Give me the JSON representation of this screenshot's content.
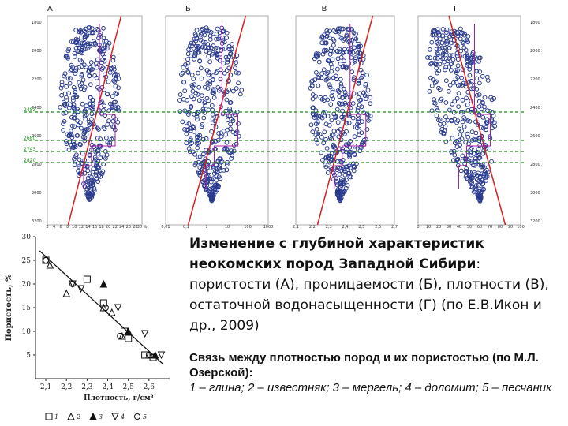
{
  "caption_main": {
    "bold": "Изменение с глубиной характеристик неокомских пород Западной Сибири",
    "rest": ": пористости (А), проницаемости (Б), плотности (В), остаточной водонасыщенности (Г) (по Е.В.Икон и др., 2009)"
  },
  "caption_second": {
    "title": "Связь между плотностью пород и их пористостью (по М.Л. Озерской):",
    "legend_text": "1 – глина; 2 – известняк; 3 – мергель; 4 – доломит; 5 – песчаник"
  },
  "chart_data": [
    {
      "type": "scatter",
      "panel": "А",
      "ylabels_left": [
        "1800",
        "2000",
        "2200",
        "2400",
        "2600",
        "2800",
        "3000",
        "3200"
      ],
      "xlabels": [
        "2",
        "4",
        "6",
        "8",
        "10",
        "12",
        "14",
        "16",
        "18",
        "20",
        "22",
        "24",
        "26",
        "28",
        "30 %"
      ],
      "markers": [
        "2483",
        "2680",
        "2743",
        "2820"
      ],
      "trend": "increasing depth, decreasing value"
    },
    {
      "type": "scatter",
      "panel": "Б",
      "xlabels": [
        "0,01",
        "0,1",
        "1",
        "10",
        "100",
        "1000"
      ]
    },
    {
      "type": "scatter",
      "panel": "В",
      "xlabels": [
        "2,1",
        "2,2",
        "2,3",
        "2,4",
        "2,5",
        "2,6",
        "2,7"
      ]
    },
    {
      "type": "scatter",
      "panel": "Г",
      "ylabels_right": [
        "1800",
        "2000",
        "2200",
        "2400",
        "2600",
        "2800",
        "3000",
        "3200"
      ],
      "xlabels": [
        "0",
        "10",
        "20",
        "30",
        "40",
        "50",
        "60",
        "70",
        "80",
        "90",
        "100"
      ]
    },
    {
      "type": "scatter",
      "title": "",
      "xlabel": "Плотность, г/см³",
      "ylabel": "Пористость, %",
      "xlim": [
        2.05,
        2.7
      ],
      "ylim": [
        0,
        30
      ],
      "xticks": [
        "2,1",
        "2,2",
        "2,3",
        "2,4",
        "2,5",
        "2,6"
      ],
      "yticks": [
        "5",
        "10",
        "15",
        "20",
        "25",
        "30"
      ],
      "series": [
        {
          "name": "1",
          "marker": "square",
          "points": [
            [
              2.1,
              25
            ],
            [
              2.3,
              21
            ],
            [
              2.38,
              16
            ],
            [
              2.48,
              10
            ],
            [
              2.5,
              8.5
            ],
            [
              2.58,
              5
            ],
            [
              2.62,
              4.5
            ]
          ]
        },
        {
          "name": "2",
          "marker": "triangle",
          "points": [
            [
              2.12,
              24
            ],
            [
              2.2,
              18
            ],
            [
              2.38,
              15
            ],
            [
              2.42,
              14
            ],
            [
              2.47,
              9
            ],
            [
              2.6,
              5
            ]
          ]
        },
        {
          "name": "3",
          "marker": "triangle-filled",
          "points": [
            [
              2.38,
              20
            ],
            [
              2.5,
              10
            ],
            [
              2.63,
              5
            ]
          ]
        },
        {
          "name": "4",
          "marker": "triangle-down",
          "points": [
            [
              2.23,
              20
            ],
            [
              2.27,
              19
            ],
            [
              2.45,
              15
            ],
            [
              2.58,
              9.5
            ],
            [
              2.66,
              5
            ]
          ]
        },
        {
          "name": "5",
          "marker": "circle",
          "points": [
            [
              2.1,
              25
            ],
            [
              2.23,
              20
            ],
            [
              2.39,
              15
            ],
            [
              2.46,
              9
            ],
            [
              2.6,
              5
            ]
          ]
        }
      ],
      "trendline": [
        [
          2.07,
          27
        ],
        [
          2.67,
          3
        ]
      ]
    }
  ]
}
